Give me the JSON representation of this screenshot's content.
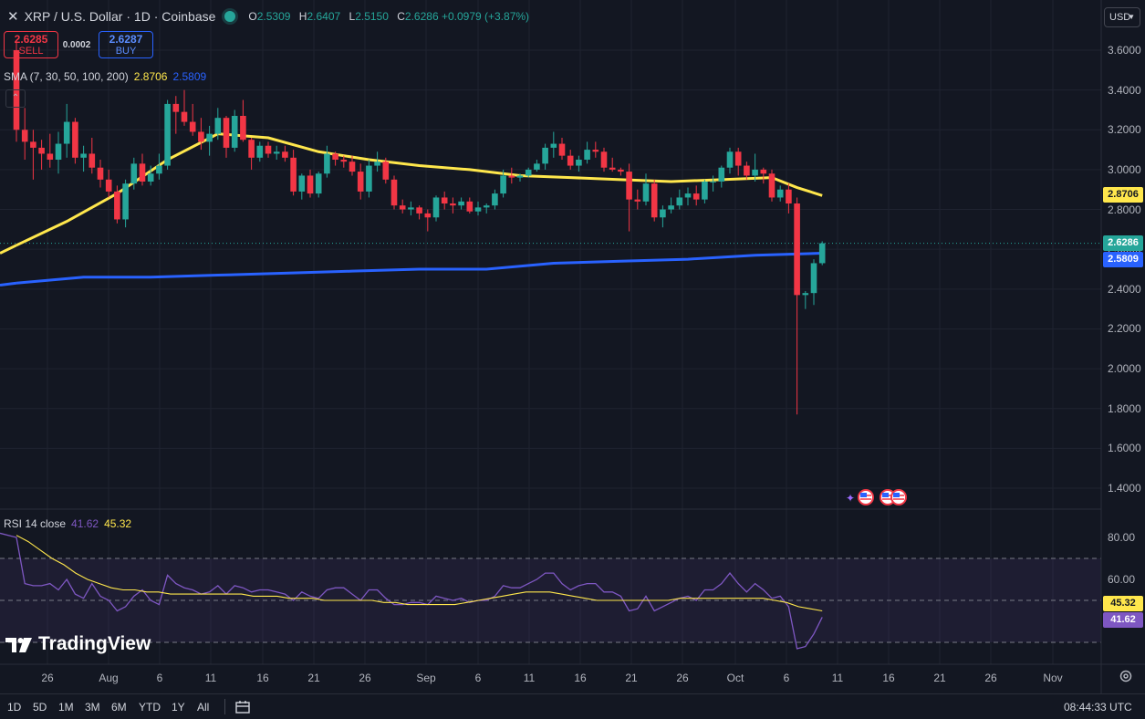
{
  "header": {
    "close_glyph": "✕",
    "title": "XRP / U.S. Dollar · 1D · Coinbase",
    "ohlc": [
      {
        "key": "O",
        "value": "2.5309"
      },
      {
        "key": "H",
        "value": "2.6407"
      },
      {
        "key": "L",
        "value": "2.5150"
      },
      {
        "key": "C",
        "value": "2.6286 +0.0979 (+3.87%)"
      }
    ]
  },
  "trade": {
    "sell_price": "2.6285",
    "sell_label": "SELL",
    "spread": "0.0002",
    "buy_price": "2.6287",
    "buy_label": "BUY"
  },
  "sma_legend": {
    "label": "SMA (7, 30, 50, 100, 200)",
    "value1": "2.8706",
    "value2": "2.5809"
  },
  "collapse_glyph": "⌃",
  "rsi_legend": {
    "label": "RSI 14 close",
    "value1": "41.62",
    "value2": "45.32"
  },
  "currency": "USD",
  "watermark": "TradingView",
  "timeframes": [
    "1D",
    "5D",
    "1M",
    "3M",
    "6M",
    "YTD",
    "1Y",
    "All"
  ],
  "clock": "08:44:33 UTC",
  "colors": {
    "up": "#26a69a",
    "down": "#f23645",
    "sma_fast": "#ffe74c",
    "sma_slow": "#2962ff",
    "rsi": "#7e57c2",
    "rsi_ma": "#ffe74c",
    "background": "#131722"
  },
  "chart_data": {
    "type": "candlestick",
    "price_axis": {
      "ticks": [
        "3.6000",
        "3.4000",
        "3.2000",
        "3.0000",
        "2.8000",
        "2.6000",
        "2.4000",
        "2.2000",
        "2.0000",
        "1.8000",
        "1.6000",
        "1.4000"
      ],
      "range": [
        1.31,
        3.74
      ]
    },
    "badges": [
      {
        "value": "2.8706",
        "color": "#ffe74c",
        "text_color": "#131722"
      },
      {
        "value": "2.6286",
        "color": "#26a69a",
        "text_color": "#ffffff"
      },
      {
        "value": "2.5809",
        "color": "#2962ff",
        "text_color": "#ffffff"
      }
    ],
    "time_axis": [
      "26",
      "Aug",
      "6",
      "11",
      "16",
      "21",
      "26",
      "Sep",
      "6",
      "11",
      "16",
      "21",
      "26",
      "Oct",
      "6",
      "11",
      "16",
      "21",
      "26",
      "Nov"
    ],
    "candles": [
      [
        3.6,
        3.65,
        3.14,
        3.2
      ],
      [
        3.2,
        3.31,
        3.05,
        3.14
      ],
      [
        3.14,
        3.2,
        2.95,
        3.11
      ],
      [
        3.11,
        3.15,
        3.0,
        3.08
      ],
      [
        3.08,
        3.18,
        3.01,
        3.05
      ],
      [
        3.05,
        3.19,
        2.98,
        3.13
      ],
      [
        3.13,
        3.33,
        3.06,
        3.24
      ],
      [
        3.24,
        3.26,
        3.03,
        3.06
      ],
      [
        3.06,
        3.12,
        2.99,
        3.08
      ],
      [
        3.08,
        3.16,
        2.98,
        3.01
      ],
      [
        3.01,
        3.05,
        2.91,
        2.95
      ],
      [
        2.95,
        3.0,
        2.86,
        2.89
      ],
      [
        2.89,
        2.92,
        2.73,
        2.75
      ],
      [
        2.75,
        2.95,
        2.71,
        2.93
      ],
      [
        2.93,
        3.06,
        2.9,
        3.03
      ],
      [
        3.03,
        3.08,
        2.92,
        2.94
      ],
      [
        2.94,
        3.02,
        2.92,
        2.98
      ],
      [
        2.98,
        3.08,
        2.95,
        3.02
      ],
      [
        3.02,
        3.35,
        3.0,
        3.33
      ],
      [
        3.33,
        3.37,
        3.18,
        3.29
      ],
      [
        3.29,
        3.4,
        3.22,
        3.24
      ],
      [
        3.24,
        3.33,
        3.17,
        3.19
      ],
      [
        3.19,
        3.26,
        3.1,
        3.14
      ],
      [
        3.14,
        3.22,
        3.07,
        3.18
      ],
      [
        3.18,
        3.31,
        3.15,
        3.26
      ],
      [
        3.26,
        3.27,
        3.06,
        3.11
      ],
      [
        3.11,
        3.3,
        3.09,
        3.27
      ],
      [
        3.27,
        3.35,
        3.14,
        3.15
      ],
      [
        3.15,
        3.16,
        3.0,
        3.06
      ],
      [
        3.06,
        3.14,
        3.04,
        3.12
      ],
      [
        3.12,
        3.14,
        3.06,
        3.08
      ],
      [
        3.08,
        3.12,
        3.05,
        3.09
      ],
      [
        3.09,
        3.12,
        3.04,
        3.06
      ],
      [
        3.06,
        3.1,
        2.87,
        2.89
      ],
      [
        2.89,
        2.98,
        2.85,
        2.97
      ],
      [
        2.97,
        3.0,
        2.86,
        2.88
      ],
      [
        2.88,
        2.99,
        2.86,
        2.98
      ],
      [
        2.98,
        3.12,
        2.96,
        3.08
      ],
      [
        3.08,
        3.09,
        3.02,
        3.05
      ],
      [
        3.05,
        3.07,
        3.01,
        3.04
      ],
      [
        3.04,
        3.07,
        2.97,
        2.99
      ],
      [
        2.99,
        3.03,
        2.85,
        2.89
      ],
      [
        2.89,
        3.05,
        2.86,
        3.02
      ],
      [
        3.02,
        3.09,
        2.99,
        3.04
      ],
      [
        3.04,
        3.06,
        2.93,
        2.95
      ],
      [
        2.95,
        2.97,
        2.8,
        2.82
      ],
      [
        2.82,
        2.85,
        2.78,
        2.8
      ],
      [
        2.8,
        2.84,
        2.77,
        2.81
      ],
      [
        2.81,
        2.82,
        2.75,
        2.78
      ],
      [
        2.78,
        2.8,
        2.69,
        2.76
      ],
      [
        2.76,
        2.87,
        2.74,
        2.86
      ],
      [
        2.86,
        2.89,
        2.8,
        2.83
      ],
      [
        2.83,
        2.86,
        2.78,
        2.82
      ],
      [
        2.82,
        2.86,
        2.8,
        2.84
      ],
      [
        2.84,
        2.86,
        2.78,
        2.79
      ],
      [
        2.79,
        2.84,
        2.77,
        2.81
      ],
      [
        2.81,
        2.83,
        2.78,
        2.82
      ],
      [
        2.82,
        2.9,
        2.8,
        2.88
      ],
      [
        2.88,
        3.0,
        2.86,
        2.97
      ],
      [
        2.97,
        3.01,
        2.93,
        2.96
      ],
      [
        2.96,
        2.98,
        2.94,
        2.97
      ],
      [
        2.97,
        3.01,
        2.96,
        3.0
      ],
      [
        3.0,
        3.05,
        2.99,
        3.03
      ],
      [
        3.03,
        3.13,
        3.0,
        3.11
      ],
      [
        3.11,
        3.19,
        3.06,
        3.13
      ],
      [
        3.13,
        3.16,
        3.05,
        3.07
      ],
      [
        3.07,
        3.1,
        3.0,
        3.02
      ],
      [
        3.02,
        3.07,
        2.99,
        3.05
      ],
      [
        3.05,
        3.14,
        3.03,
        3.1
      ],
      [
        3.1,
        3.14,
        3.06,
        3.09
      ],
      [
        3.09,
        3.11,
        2.99,
        3.01
      ],
      [
        3.01,
        3.06,
        2.99,
        3.0
      ],
      [
        3.0,
        3.01,
        2.97,
        2.99
      ],
      [
        2.99,
        3.03,
        2.69,
        2.85
      ],
      [
        2.85,
        2.9,
        2.8,
        2.84
      ],
      [
        2.84,
        2.98,
        2.82,
        2.93
      ],
      [
        2.93,
        2.95,
        2.74,
        2.76
      ],
      [
        2.76,
        2.82,
        2.71,
        2.8
      ],
      [
        2.8,
        2.86,
        2.78,
        2.82
      ],
      [
        2.82,
        2.9,
        2.8,
        2.86
      ],
      [
        2.86,
        2.91,
        2.82,
        2.88
      ],
      [
        2.88,
        2.92,
        2.82,
        2.85
      ],
      [
        2.85,
        2.95,
        2.83,
        2.94
      ],
      [
        2.94,
        2.97,
        2.89,
        2.94
      ],
      [
        2.94,
        3.02,
        2.91,
        3.01
      ],
      [
        3.01,
        3.11,
        2.98,
        3.09
      ],
      [
        3.09,
        3.11,
        2.97,
        3.02
      ],
      [
        3.02,
        3.04,
        2.95,
        2.97
      ],
      [
        2.97,
        3.08,
        2.94,
        3.0
      ],
      [
        3.0,
        3.01,
        2.93,
        2.98
      ],
      [
        2.98,
        3.0,
        2.84,
        2.86
      ],
      [
        2.86,
        2.92,
        2.84,
        2.9
      ],
      [
        2.9,
        2.93,
        2.78,
        2.83
      ],
      [
        2.83,
        2.86,
        1.77,
        2.37
      ],
      [
        2.37,
        2.39,
        2.3,
        2.38
      ],
      [
        2.38,
        2.55,
        2.32,
        2.53
      ],
      [
        2.53,
        2.64,
        2.52,
        2.63
      ]
    ],
    "sma_fast": [
      [
        0,
        2.62
      ],
      [
        6,
        2.74
      ],
      [
        12,
        2.88
      ],
      [
        18,
        3.05
      ],
      [
        24,
        3.18
      ],
      [
        30,
        3.16
      ],
      [
        36,
        3.09
      ],
      [
        42,
        3.05
      ],
      [
        48,
        3.02
      ],
      [
        54,
        3.0
      ],
      [
        60,
        2.97
      ],
      [
        66,
        2.96
      ],
      [
        72,
        2.95
      ],
      [
        78,
        2.94
      ],
      [
        84,
        2.95
      ],
      [
        90,
        2.96
      ],
      [
        93,
        2.91
      ],
      [
        96,
        2.87
      ]
    ],
    "sma_slow": [
      [
        0,
        2.43
      ],
      [
        8,
        2.46
      ],
      [
        16,
        2.46
      ],
      [
        24,
        2.47
      ],
      [
        32,
        2.48
      ],
      [
        40,
        2.49
      ],
      [
        48,
        2.5
      ],
      [
        56,
        2.5
      ],
      [
        64,
        2.53
      ],
      [
        72,
        2.54
      ],
      [
        80,
        2.55
      ],
      [
        88,
        2.57
      ],
      [
        96,
        2.58
      ]
    ],
    "rsi_axis": {
      "ticks": [
        "80.00",
        "60.00"
      ],
      "range": [
        24,
        87
      ],
      "bands": [
        70,
        50,
        30
      ]
    },
    "rsi_badges": [
      {
        "value": "45.32",
        "color": "#ffe74c",
        "text_color": "#131722"
      },
      {
        "value": "41.62",
        "color": "#7e57c2",
        "text_color": "#ffffff"
      }
    ],
    "rsi": [
      80,
      58,
      57,
      57,
      58,
      55,
      60,
      53,
      51,
      58,
      52,
      50,
      45,
      47,
      52,
      55,
      50,
      48,
      62,
      58,
      56,
      55,
      53,
      54,
      57,
      53,
      57,
      56,
      54,
      55,
      55,
      54,
      53,
      50,
      54,
      52,
      51,
      55,
      56,
      56,
      53,
      50,
      55,
      55,
      51,
      48,
      48,
      49,
      49,
      48,
      52,
      51,
      50,
      51,
      49,
      50,
      50,
      52,
      57,
      56,
      56,
      58,
      60,
      63,
      63,
      58,
      55,
      57,
      58,
      58,
      54,
      54,
      52,
      45,
      46,
      52,
      45,
      47,
      49,
      51,
      52,
      50,
      55,
      55,
      58,
      63,
      58,
      54,
      58,
      55,
      51,
      52,
      47,
      27,
      28,
      34,
      42
    ],
    "rsi_ma": [
      81,
      78,
      74,
      70,
      67,
      63,
      60,
      58,
      56,
      55,
      55,
      54,
      54,
      53,
      53,
      53,
      53,
      53,
      53,
      53,
      52,
      52,
      52,
      51,
      51,
      51,
      50,
      50,
      50,
      50,
      50,
      49,
      49,
      48,
      48,
      48,
      48,
      48,
      49,
      50,
      51,
      52,
      53,
      54,
      54,
      54,
      53,
      52,
      51,
      50,
      50,
      50,
      50,
      50,
      50,
      50,
      51,
      51,
      51,
      51,
      51,
      51,
      51,
      51,
      50,
      49,
      47,
      46,
      45
    ]
  }
}
